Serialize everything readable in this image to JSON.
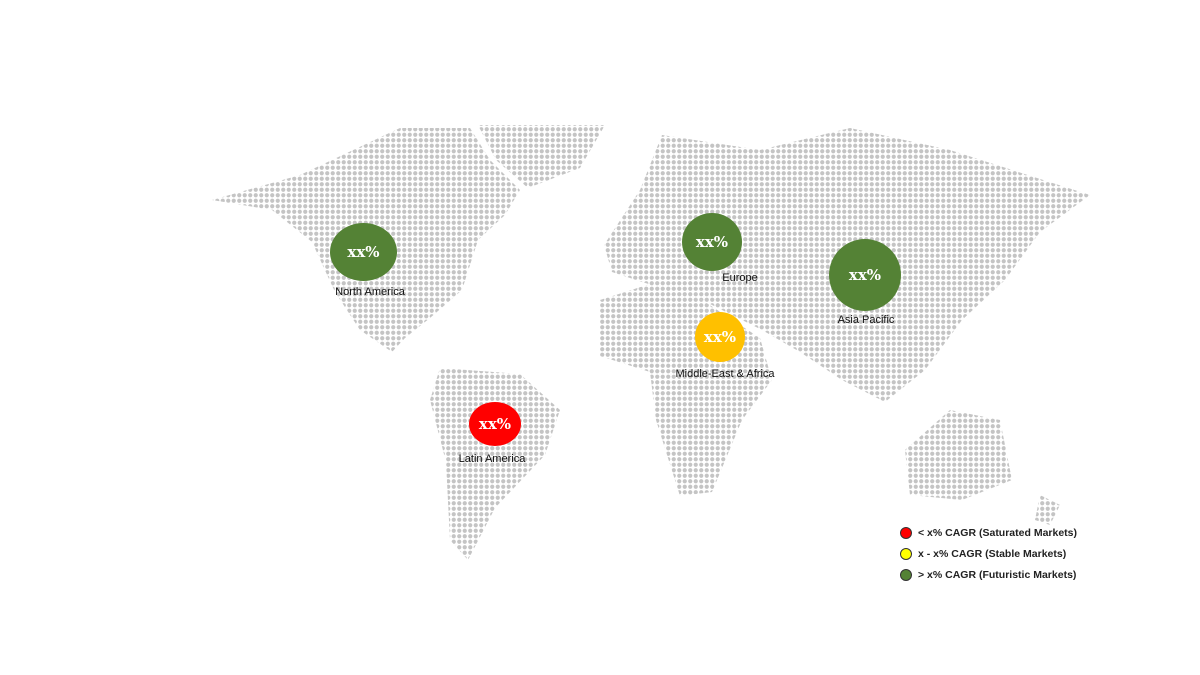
{
  "regions": [
    {
      "name": "North America",
      "value": "xx%",
      "color": "#548235"
    },
    {
      "name": "Europe",
      "value": "xx%",
      "color": "#548235"
    },
    {
      "name": "Asia Pacific",
      "value": "xx%",
      "color": "#548235"
    },
    {
      "name": "Middle-East & Africa",
      "value": "xx%",
      "color": "#FFC000"
    },
    {
      "name": "Latin America",
      "value": "xx%",
      "color": "#FF0000"
    }
  ],
  "legend": [
    {
      "label": "< x% CAGR (Saturated Markets)",
      "color": "#FF0000"
    },
    {
      "label": "x - x% CAGR (Stable Markets)",
      "color": "#FFFF00"
    },
    {
      "label": "> x% CAGR (Futuristic Markets)",
      "color": "#548235"
    }
  ],
  "map_dot_color": "#c4c4c4"
}
